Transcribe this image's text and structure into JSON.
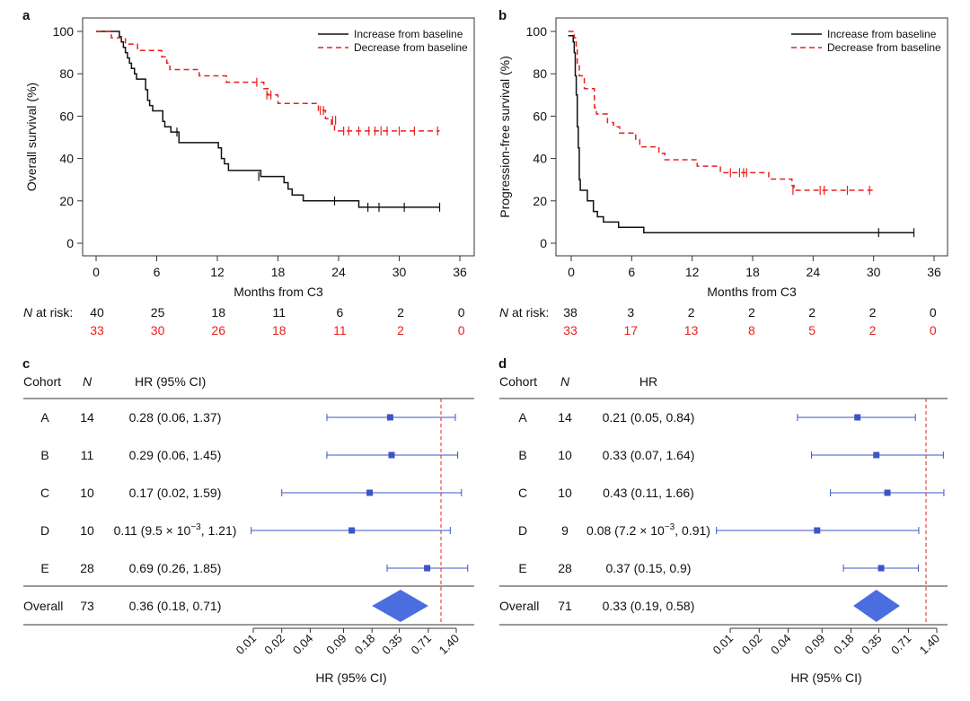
{
  "colors": {
    "increase": "#111111",
    "decrease": "#e8211d",
    "forest": "#3b55c4",
    "diamond": "#4a6ee0",
    "refline": "#e8211d",
    "axis": "#333333",
    "risk_increase": "#111111",
    "risk_decrease": "#e8211d"
  },
  "chart_data": [
    {
      "panel": "a",
      "type": "line",
      "step": true,
      "xlabel": "Months from C3",
      "ylabel": "Overall survival (%)",
      "xlim": [
        0,
        36
      ],
      "ylim": [
        0,
        100
      ],
      "xticks": [
        0,
        6,
        12,
        18,
        24,
        30,
        36
      ],
      "yticks": [
        0,
        20,
        40,
        60,
        80,
        100
      ],
      "legend_position": "top-right",
      "series": [
        {
          "name": "Increase from baseline",
          "line": "solid",
          "points": [
            [
              0,
              100
            ],
            [
              1.8,
              100
            ],
            [
              2.3,
              97.5
            ],
            [
              2.5,
              95
            ],
            [
              2.7,
              92.5
            ],
            [
              2.9,
              90
            ],
            [
              3.1,
              87.5
            ],
            [
              3.3,
              85
            ],
            [
              3.5,
              82.5
            ],
            [
              3.8,
              80
            ],
            [
              4.0,
              77.5
            ],
            [
              4.9,
              72.5
            ],
            [
              5.1,
              67.5
            ],
            [
              5.3,
              65
            ],
            [
              5.6,
              62.5
            ],
            [
              6.6,
              57.5
            ],
            [
              6.8,
              55
            ],
            [
              7.4,
              52.5
            ],
            [
              8.2,
              47.5
            ],
            [
              12.1,
              45
            ],
            [
              12.4,
              40
            ],
            [
              12.7,
              37.5
            ],
            [
              13.1,
              34.4
            ],
            [
              16.3,
              31.5
            ],
            [
              18.6,
              28.6
            ],
            [
              19.0,
              25.6
            ],
            [
              19.4,
              22.8
            ],
            [
              20.5,
              20
            ],
            [
              26.0,
              17
            ],
            [
              34.0,
              17
            ]
          ],
          "censored": [
            [
              8.0,
              52.5
            ],
            [
              16.1,
              31.5
            ],
            [
              23.6,
              20
            ],
            [
              26.9,
              17
            ],
            [
              28.0,
              17
            ],
            [
              30.5,
              17
            ],
            [
              34.0,
              17
            ]
          ]
        },
        {
          "name": "Decrease from baseline",
          "line": "dashed",
          "points": [
            [
              0,
              100
            ],
            [
              1.2,
              100
            ],
            [
              1.5,
              97
            ],
            [
              2.9,
              94
            ],
            [
              4.1,
              91
            ],
            [
              6.5,
              88
            ],
            [
              7.0,
              85
            ],
            [
              7.3,
              82
            ],
            [
              10.2,
              79
            ],
            [
              12.9,
              76
            ],
            [
              16.6,
              73
            ],
            [
              17.0,
              70
            ],
            [
              18.0,
              66
            ],
            [
              22.0,
              62.7
            ],
            [
              22.7,
              58.8
            ],
            [
              23.3,
              56
            ],
            [
              23.6,
              53
            ],
            [
              34.0,
              53
            ]
          ],
          "censored": [
            [
              15.9,
              76
            ],
            [
              16.9,
              70
            ],
            [
              17.3,
              70
            ],
            [
              22.2,
              62.7
            ],
            [
              22.5,
              62.7
            ],
            [
              23.4,
              58
            ],
            [
              23.7,
              58
            ],
            [
              24.5,
              53
            ],
            [
              25.0,
              53
            ],
            [
              26.0,
              53
            ],
            [
              27.0,
              53
            ],
            [
              27.6,
              53
            ],
            [
              28.2,
              53
            ],
            [
              28.8,
              53
            ],
            [
              30.0,
              53
            ],
            [
              31.5,
              53
            ],
            [
              33.8,
              53
            ]
          ]
        }
      ],
      "risk_table": {
        "label_italic": "N",
        "label_rest": " at risk:",
        "times": [
          0,
          6,
          12,
          18,
          24,
          30,
          36
        ],
        "increase": [
          "40",
          "25",
          "18",
          "11",
          "6",
          "2",
          "0"
        ],
        "decrease": [
          "33",
          "30",
          "26",
          "18",
          "11",
          "2",
          "0"
        ]
      }
    },
    {
      "panel": "b",
      "type": "line",
      "step": true,
      "xlabel": "Months from C3",
      "ylabel": "Progression-free survival (%)",
      "xlim": [
        0,
        36
      ],
      "ylim": [
        0,
        100
      ],
      "xticks": [
        0,
        6,
        12,
        18,
        24,
        30,
        36
      ],
      "yticks": [
        0,
        20,
        40,
        60,
        80,
        100
      ],
      "legend_position": "top-right",
      "series": [
        {
          "name": "Increase from baseline",
          "line": "solid",
          "points": [
            [
              -0.3,
              98
            ],
            [
              0.1,
              98
            ],
            [
              0.2,
              95
            ],
            [
              0.3,
              90
            ],
            [
              0.4,
              79
            ],
            [
              0.5,
              70
            ],
            [
              0.6,
              55
            ],
            [
              0.7,
              45
            ],
            [
              0.8,
              30
            ],
            [
              0.9,
              25
            ],
            [
              1.6,
              20
            ],
            [
              2.2,
              15
            ],
            [
              2.6,
              12.5
            ],
            [
              3.2,
              10
            ],
            [
              4.7,
              7.5
            ],
            [
              7.2,
              5
            ],
            [
              34.0,
              5
            ]
          ],
          "censored": [
            [
              30.5,
              5
            ],
            [
              34.0,
              5
            ]
          ]
        },
        {
          "name": "Decrease from baseline",
          "line": "dashed",
          "points": [
            [
              -0.3,
              100
            ],
            [
              0.1,
              100
            ],
            [
              0.3,
              97
            ],
            [
              0.5,
              92
            ],
            [
              0.6,
              85
            ],
            [
              0.8,
              79
            ],
            [
              1.3,
              73
            ],
            [
              2.3,
              64
            ],
            [
              2.5,
              61
            ],
            [
              3.6,
              57
            ],
            [
              4.2,
              55
            ],
            [
              4.8,
              52
            ],
            [
              6.4,
              49
            ],
            [
              6.8,
              45.5
            ],
            [
              8.7,
              42.4
            ],
            [
              9.3,
              39.4
            ],
            [
              12.5,
              36.4
            ],
            [
              14.8,
              33.3
            ],
            [
              19.6,
              30.3
            ],
            [
              21.9,
              27.3
            ],
            [
              22.1,
              25
            ],
            [
              30.0,
              25
            ]
          ],
          "censored": [
            [
              15.8,
              33.3
            ],
            [
              16.7,
              33.3
            ],
            [
              17.1,
              33.3
            ],
            [
              17.4,
              33.3
            ],
            [
              22.0,
              25
            ],
            [
              24.7,
              25
            ],
            [
              25.1,
              25
            ],
            [
              27.4,
              25
            ],
            [
              29.6,
              25
            ]
          ]
        }
      ],
      "risk_table": {
        "label_italic": "N",
        "label_rest": " at risk:",
        "times": [
          0,
          6,
          12,
          18,
          24,
          30,
          36
        ],
        "increase": [
          "38",
          "3",
          "2",
          "2",
          "2",
          "2",
          "0"
        ],
        "decrease": [
          "33",
          "17",
          "13",
          "8",
          "5",
          "2",
          "0"
        ]
      }
    },
    {
      "panel": "c",
      "type": "forest",
      "scale": "log",
      "header": [
        "Cohort",
        "N",
        "HR (95% CI)"
      ],
      "xlabel": "HR (95% CI)",
      "xticks": [
        "0.01",
        "0.02",
        "0.04",
        "0.09",
        "0.18",
        "0.35",
        "0.71",
        "1.40"
      ],
      "reference_line": 1,
      "rows": [
        {
          "cohort": "A",
          "n": "14",
          "hr_text": "0.28 (0.06, 1.37)",
          "hr": 0.28,
          "lo": 0.06,
          "hi": 1.37
        },
        {
          "cohort": "B",
          "n": "11",
          "hr_text": "0.29 (0.06, 1.45)",
          "hr": 0.29,
          "lo": 0.06,
          "hi": 1.45
        },
        {
          "cohort": "C",
          "n": "10",
          "hr_text": "0.17 (0.02, 1.59)",
          "hr": 0.17,
          "lo": 0.02,
          "hi": 1.59
        },
        {
          "cohort": "D",
          "n": "10",
          "hr_text": "0.11 (9.5 × 10",
          "hr_sup": "−3",
          "hr_text_tail": ", 1.21)",
          "hr": 0.11,
          "lo": 0.0095,
          "hi": 1.21
        },
        {
          "cohort": "E",
          "n": "28",
          "hr_text": "0.69 (0.26, 1.85)",
          "hr": 0.69,
          "lo": 0.26,
          "hi": 1.85
        }
      ],
      "overall": {
        "cohort": "Overall",
        "n": "73",
        "hr_text": "0.36 (0.18, 0.71)",
        "hr": 0.36,
        "lo": 0.18,
        "hi": 0.71
      }
    },
    {
      "panel": "d",
      "type": "forest",
      "scale": "log",
      "header": [
        "Cohort",
        "N",
        "HR"
      ],
      "xlabel": "HR (95% CI)",
      "xticks": [
        "0.01",
        "0.02",
        "0.04",
        "0.09",
        "0.18",
        "0.35",
        "0.71",
        "1.40"
      ],
      "reference_line": 1,
      "rows": [
        {
          "cohort": "A",
          "n": "14",
          "hr_text": "0.21 (0.05, 0.84)",
          "hr": 0.21,
          "lo": 0.05,
          "hi": 0.84
        },
        {
          "cohort": "B",
          "n": "10",
          "hr_text": "0.33 (0.07, 1.64)",
          "hr": 0.33,
          "lo": 0.07,
          "hi": 1.64
        },
        {
          "cohort": "C",
          "n": "10",
          "hr_text": "0.43 (0.11, 1.66)",
          "hr": 0.43,
          "lo": 0.11,
          "hi": 1.66
        },
        {
          "cohort": "D",
          "n": "9",
          "hr_text": "0.08 (7.2 × 10",
          "hr_sup": "−3",
          "hr_text_tail": ", 0.91)",
          "hr": 0.08,
          "lo": 0.0072,
          "hi": 0.91
        },
        {
          "cohort": "E",
          "n": "28",
          "hr_text": "0.37 (0.15, 0.9)",
          "hr": 0.37,
          "lo": 0.15,
          "hi": 0.9
        }
      ],
      "overall": {
        "cohort": "Overall",
        "n": "71",
        "hr_text": "0.33 (0.19, 0.58)",
        "hr": 0.33,
        "lo": 0.19,
        "hi": 0.58
      }
    }
  ]
}
